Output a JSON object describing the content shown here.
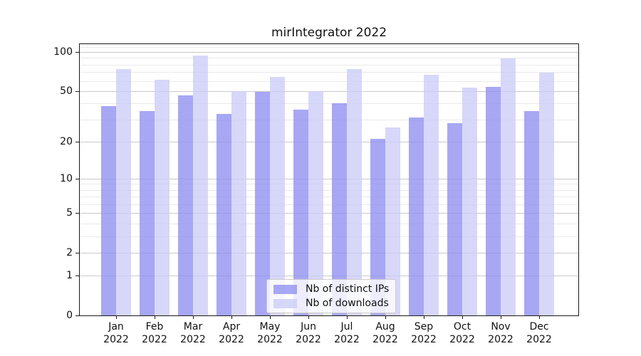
{
  "chart_data": {
    "type": "bar",
    "title": "mirIntegrator 2022",
    "categories": [
      "Jan 2022",
      "Feb 2022",
      "Mar 2022",
      "Apr 2022",
      "May 2022",
      "Jun 2022",
      "Jul 2022",
      "Aug 2022",
      "Sep 2022",
      "Oct 2022",
      "Nov 2022",
      "Dec 2022"
    ],
    "series": [
      {
        "name": "Nb of distinct IPs",
        "color": "rgba(145,145,241,0.8)",
        "values": [
          38,
          35,
          46,
          33,
          49,
          36,
          40,
          21,
          31,
          28,
          54,
          35
        ]
      },
      {
        "name": "Nb of downloads",
        "color": "rgba(205,205,249,0.8)",
        "values": [
          74,
          61,
          94,
          50,
          64,
          50,
          74,
          26,
          67,
          53,
          89,
          69
        ]
      }
    ],
    "xlabel": "",
    "ylabel": "",
    "yscale": "log1p",
    "ylim": [
      0,
      115
    ],
    "yticks": [
      0,
      1,
      2,
      5,
      10,
      20,
      50,
      100
    ],
    "yticks_minor": [
      3,
      4,
      6,
      7,
      8,
      9,
      30,
      40,
      60,
      70,
      80,
      90,
      110
    ],
    "grid": true,
    "legend_position": "lower center"
  }
}
